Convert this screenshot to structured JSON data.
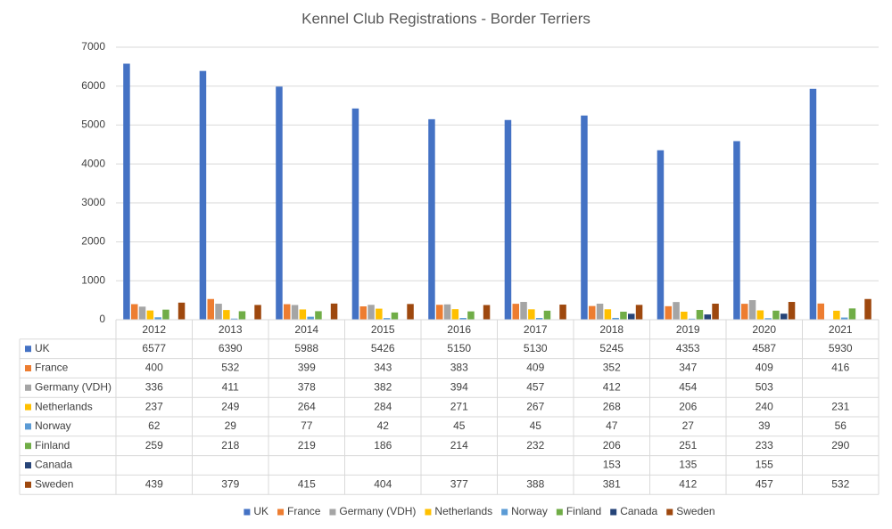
{
  "chart_data": {
    "type": "bar",
    "title": "Kennel Club Registrations - Border Terriers",
    "categories": [
      "2012",
      "2013",
      "2014",
      "2015",
      "2016",
      "2017",
      "2018",
      "2019",
      "2020",
      "2021"
    ],
    "ylim": [
      0,
      7000
    ],
    "yticks": [
      0,
      1000,
      2000,
      3000,
      4000,
      5000,
      6000,
      7000
    ],
    "grid": true,
    "legend": "bottom",
    "data_table": true,
    "series": [
      {
        "name": "UK",
        "color": "#4472c4",
        "values": [
          6577,
          6390,
          5988,
          5426,
          5150,
          5130,
          5245,
          4353,
          4587,
          5930
        ]
      },
      {
        "name": "France",
        "color": "#ed7d31",
        "values": [
          400,
          532,
          399,
          343,
          383,
          409,
          352,
          347,
          409,
          416
        ]
      },
      {
        "name": "Germany (VDH)",
        "color": "#a5a5a5",
        "values": [
          336,
          411,
          378,
          382,
          394,
          457,
          412,
          454,
          503,
          null
        ]
      },
      {
        "name": "Netherlands",
        "color": "#ffc000",
        "values": [
          237,
          249,
          264,
          284,
          271,
          267,
          268,
          206,
          240,
          231
        ]
      },
      {
        "name": "Norway",
        "color": "#5b9bd5",
        "values": [
          62,
          29,
          77,
          42,
          45,
          45,
          47,
          27,
          39,
          56
        ]
      },
      {
        "name": "Finland",
        "color": "#70ad47",
        "values": [
          259,
          218,
          219,
          186,
          214,
          232,
          206,
          251,
          233,
          290
        ]
      },
      {
        "name": "Canada",
        "color": "#264478",
        "values": [
          null,
          null,
          null,
          null,
          null,
          null,
          153,
          135,
          155,
          null
        ]
      },
      {
        "name": "Sweden",
        "color": "#9e480e",
        "values": [
          439,
          379,
          415,
          404,
          377,
          388,
          381,
          412,
          457,
          532
        ]
      }
    ]
  }
}
